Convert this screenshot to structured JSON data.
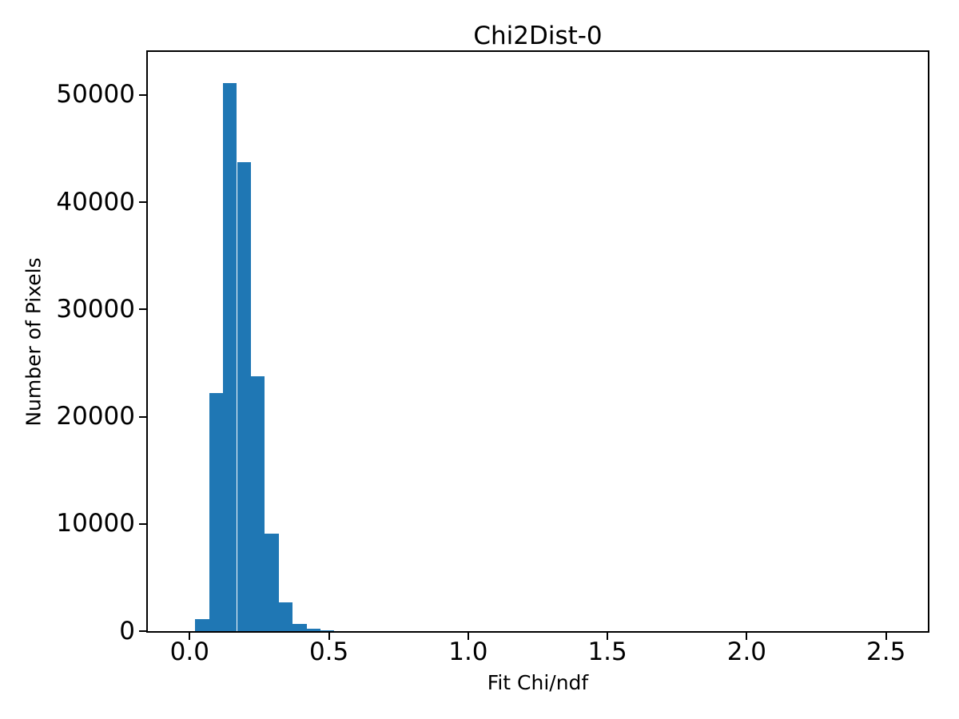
{
  "chart_data": {
    "type": "bar",
    "subtype": "histogram",
    "title": "Chi2Dist-0",
    "xlabel": "Fit Chi/ndf",
    "ylabel": "Number of Pixels",
    "bar_color": "#1f77b4",
    "axis_color": "#000000",
    "background_color": "#ffffff",
    "grid": false,
    "legend": false,
    "xlim": [
      -0.15,
      2.65
    ],
    "ylim": [
      0,
      54000
    ],
    "bins": {
      "start": 0.02,
      "width": 0.05,
      "counts": [
        1100,
        22200,
        51100,
        43700,
        23800,
        9100,
        2700,
        650,
        200,
        60
      ]
    },
    "xticks": {
      "values": [
        0.0,
        0.5,
        1.0,
        1.5,
        2.0,
        2.5
      ],
      "labels": [
        "0.0",
        "0.5",
        "1.0",
        "1.5",
        "2.0",
        "2.5"
      ]
    },
    "yticks": {
      "values": [
        0,
        10000,
        20000,
        30000,
        40000,
        50000
      ],
      "labels": [
        "0",
        "10000",
        "20000",
        "30000",
        "40000",
        "50000"
      ]
    }
  }
}
